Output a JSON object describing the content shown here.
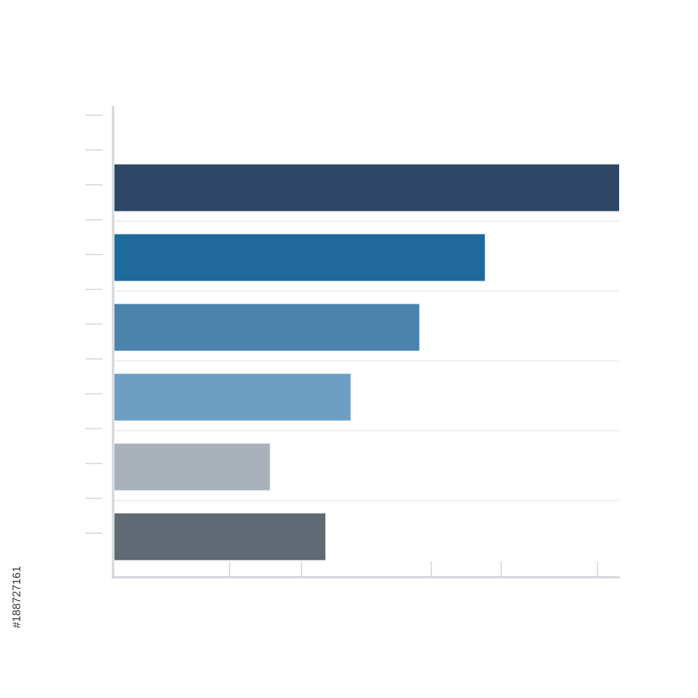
{
  "chart_data": {
    "type": "barh",
    "categories": [
      null,
      null,
      null,
      null,
      null,
      null
    ],
    "values": [
      100,
      73.4,
      60.4,
      46.8,
      30.8,
      41.8
    ],
    "colors": [
      "#2e4767",
      "#1f6a9c",
      "#4a83ac",
      "#6d9fc5",
      "#a9b2bb",
      "#5f6a74"
    ],
    "xlim": [
      0,
      100
    ]
  },
  "image_id": "#188727161"
}
